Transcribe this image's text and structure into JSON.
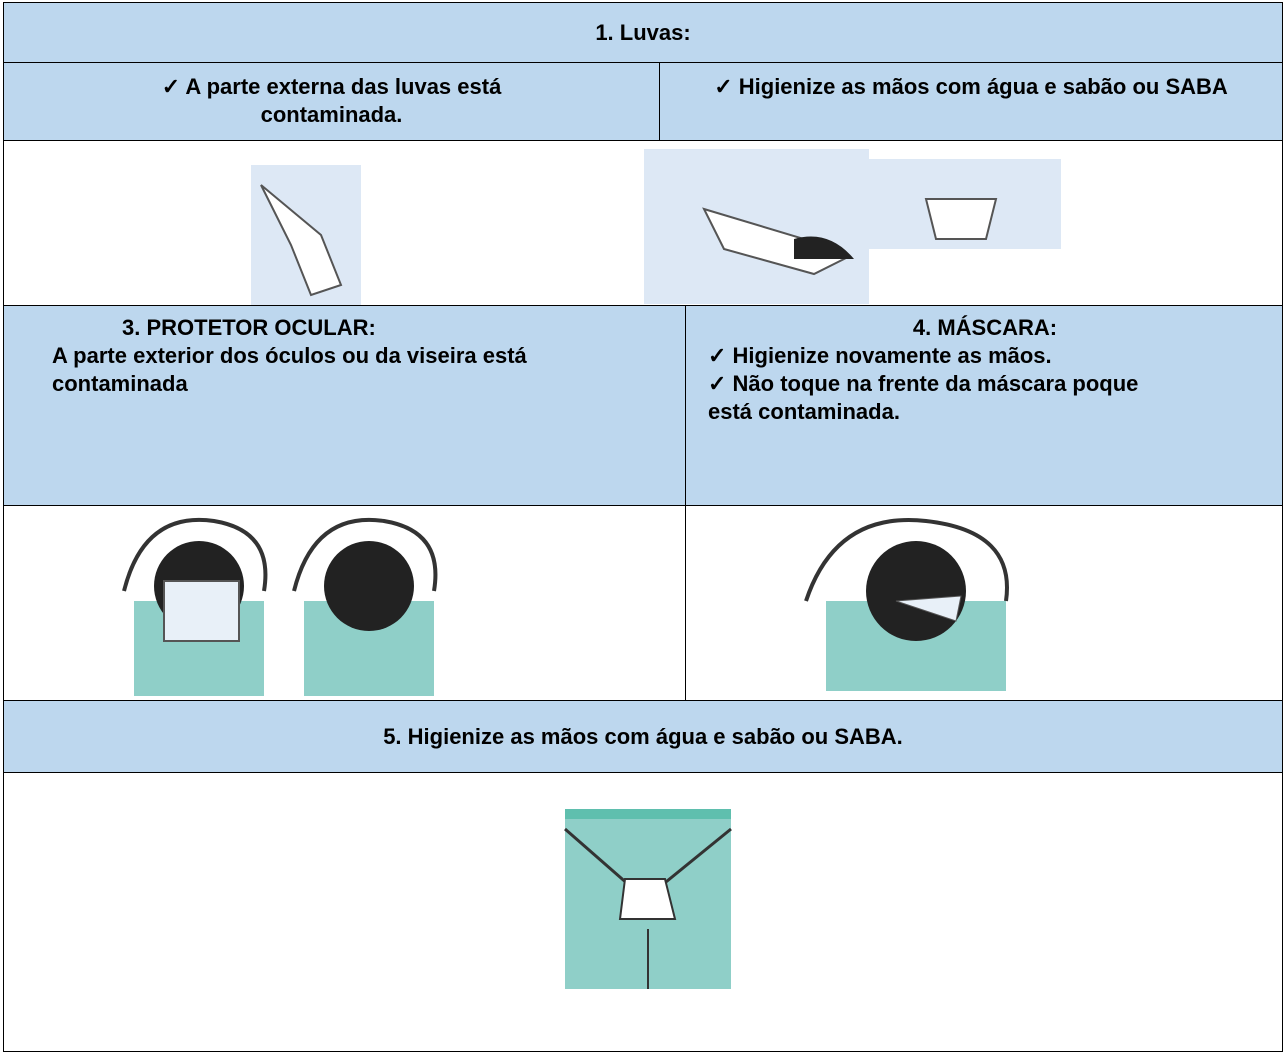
{
  "table": {
    "rows": [
      {
        "cells": [
          "1.  Luvas:"
        ]
      },
      {
        "cells": [
          "✓ A parte externa das luvas está contaminada.",
          "✓  Higienize as mãos com água e sabão  ou SABA"
        ]
      },
      {
        "cells": [
          "3. PROTETOR OCULAR:",
          "A parte exterior dos óculos ou da viseira está contaminada"
        ]
      },
      {
        "cells": [
          "4.  MÁSCARA:",
          "✓ Higienize novamente as mãos.",
          "✓ Não toque na frente da máscara poque está contaminada."
        ]
      },
      {
        "cells": [
          "5. Higienize as mãos com água e sabão ou  SABA."
        ]
      }
    ]
  }
}
